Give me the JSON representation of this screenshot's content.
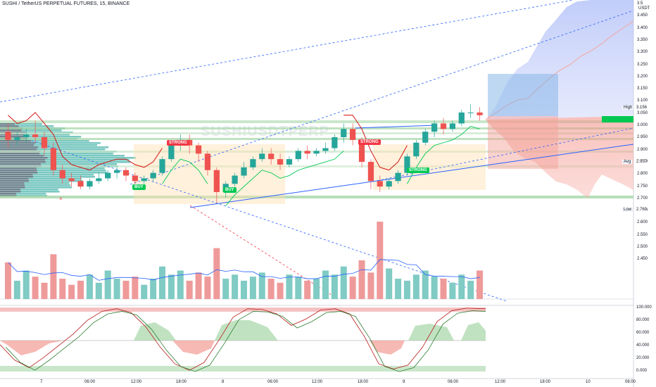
{
  "header": {
    "title": "SUSHI / TetherUS PERPETUAL FUTURES, 15, BINANCE"
  },
  "watermark": "SUSHIUSDTPERP",
  "price_axis": {
    "currency": "USDT",
    "ticks": [
      "3.5",
      "3.450",
      "3.400",
      "3.350",
      "3.300",
      "3.250",
      "3.200",
      "3.150",
      "3.100",
      "3.050",
      "3.000",
      "2.950",
      "2.900",
      "2.850",
      "2.800",
      "2.750",
      "2.700",
      "2.650",
      "2.600",
      "2.550",
      "2.500",
      "2.450"
    ],
    "badges": [
      {
        "label": "High",
        "value": "3.156"
      },
      {
        "label": "Avg",
        "value": "2.950"
      },
      {
        "label": "Low",
        "value": "2.769"
      }
    ]
  },
  "osc_axis": {
    "ticks": [
      "100.000",
      "80.000",
      "60.000",
      "40.000",
      "20.000",
      "0.000"
    ]
  },
  "time_axis": {
    "ticks": [
      "7",
      "06:00",
      "12:00",
      "18:00",
      "8",
      "06:00",
      "12:00",
      "18:00",
      "9",
      "06:00",
      "12:00",
      "18:00",
      "10",
      "06:00"
    ]
  },
  "signals": [
    {
      "text": "STRONG",
      "kind": "sell"
    },
    {
      "text": "BUY",
      "kind": "buy"
    },
    {
      "text": "BUY",
      "kind": "buy"
    },
    {
      "text": "STRONG",
      "kind": "sell"
    },
    {
      "text": "STRONG",
      "kind": "buy"
    }
  ],
  "colors": {
    "up": "#26a69a",
    "down": "#ef5350",
    "buy": "#00c853",
    "sell": "#f23645",
    "trend": "#2962ff",
    "green_line": "#00c853",
    "red_line": "#d50000"
  },
  "chart_data": {
    "type": "candlestick",
    "title": "SUSHI / TetherUS PERPETUAL FUTURES, 15, BINANCE",
    "price_range": [
      2.43,
      3.52
    ],
    "candles": [
      {
        "o": 3.04,
        "h": 3.07,
        "c": 3.01,
        "l": 2.98
      },
      {
        "o": 3.01,
        "h": 3.04,
        "c": 3.02,
        "l": 2.99
      },
      {
        "o": 3.02,
        "h": 3.05,
        "c": 3.03,
        "l": 3.0
      },
      {
        "o": 3.03,
        "h": 3.08,
        "c": 3.02,
        "l": 3.0
      },
      {
        "o": 3.02,
        "h": 3.04,
        "c": 2.98,
        "l": 2.95
      },
      {
        "o": 2.98,
        "h": 3.0,
        "c": 2.9,
        "l": 2.88
      },
      {
        "o": 2.9,
        "h": 2.92,
        "c": 2.87,
        "l": 2.85
      },
      {
        "o": 2.87,
        "h": 2.89,
        "c": 2.86,
        "l": 2.84
      },
      {
        "o": 2.86,
        "h": 2.88,
        "c": 2.84,
        "l": 2.83
      },
      {
        "o": 2.84,
        "h": 2.87,
        "c": 2.86,
        "l": 2.83
      },
      {
        "o": 2.86,
        "h": 2.89,
        "c": 2.87,
        "l": 2.85
      },
      {
        "o": 2.87,
        "h": 2.9,
        "c": 2.89,
        "l": 2.86
      },
      {
        "o": 2.89,
        "h": 2.91,
        "c": 2.9,
        "l": 2.87
      },
      {
        "o": 2.9,
        "h": 2.91,
        "c": 2.88,
        "l": 2.86
      },
      {
        "o": 2.88,
        "h": 2.89,
        "c": 2.86,
        "l": 2.84
      },
      {
        "o": 2.86,
        "h": 2.88,
        "c": 2.87,
        "l": 2.85
      },
      {
        "o": 2.87,
        "h": 2.9,
        "c": 2.89,
        "l": 2.86
      },
      {
        "o": 2.89,
        "h": 2.95,
        "c": 2.94,
        "l": 2.88
      },
      {
        "o": 2.94,
        "h": 3.0,
        "c": 2.99,
        "l": 2.93
      },
      {
        "o": 2.99,
        "h": 3.03,
        "c": 3.01,
        "l": 2.97
      },
      {
        "o": 3.01,
        "h": 3.03,
        "c": 2.99,
        "l": 2.96
      },
      {
        "o": 2.99,
        "h": 3.0,
        "c": 2.96,
        "l": 2.93
      },
      {
        "o": 2.96,
        "h": 2.97,
        "c": 2.9,
        "l": 2.88
      },
      {
        "o": 2.9,
        "h": 2.91,
        "c": 2.82,
        "l": 2.78
      },
      {
        "o": 2.82,
        "h": 2.86,
        "c": 2.85,
        "l": 2.8
      },
      {
        "o": 2.85,
        "h": 2.89,
        "c": 2.88,
        "l": 2.84
      },
      {
        "o": 2.88,
        "h": 2.93,
        "c": 2.91,
        "l": 2.87
      },
      {
        "o": 2.91,
        "h": 2.95,
        "c": 2.94,
        "l": 2.9
      },
      {
        "o": 2.94,
        "h": 2.98,
        "c": 2.96,
        "l": 2.93
      },
      {
        "o": 2.96,
        "h": 2.98,
        "c": 2.94,
        "l": 2.92
      },
      {
        "o": 2.94,
        "h": 2.96,
        "c": 2.92,
        "l": 2.9
      },
      {
        "o": 2.92,
        "h": 2.95,
        "c": 2.94,
        "l": 2.91
      },
      {
        "o": 2.94,
        "h": 2.98,
        "c": 2.97,
        "l": 2.93
      },
      {
        "o": 2.97,
        "h": 2.99,
        "c": 2.96,
        "l": 2.94
      },
      {
        "o": 2.96,
        "h": 2.98,
        "c": 2.97,
        "l": 2.95
      },
      {
        "o": 2.97,
        "h": 3.0,
        "c": 2.98,
        "l": 2.96
      },
      {
        "o": 2.98,
        "h": 3.03,
        "c": 3.02,
        "l": 2.97
      },
      {
        "o": 3.02,
        "h": 3.07,
        "c": 3.05,
        "l": 3.0
      },
      {
        "o": 3.05,
        "h": 3.07,
        "c": 3.01,
        "l": 2.99
      },
      {
        "o": 3.01,
        "h": 3.02,
        "c": 2.93,
        "l": 2.91
      },
      {
        "o": 2.93,
        "h": 2.94,
        "c": 2.86,
        "l": 2.83
      },
      {
        "o": 2.86,
        "h": 2.88,
        "c": 2.84,
        "l": 2.82
      },
      {
        "o": 2.84,
        "h": 2.87,
        "c": 2.86,
        "l": 2.83
      },
      {
        "o": 2.86,
        "h": 2.9,
        "c": 2.89,
        "l": 2.85
      },
      {
        "o": 2.89,
        "h": 2.96,
        "c": 2.95,
        "l": 2.88
      },
      {
        "o": 2.95,
        "h": 3.01,
        "c": 3.0,
        "l": 2.94
      },
      {
        "o": 3.0,
        "h": 3.05,
        "c": 3.04,
        "l": 2.99
      },
      {
        "o": 3.04,
        "h": 3.08,
        "c": 3.07,
        "l": 3.02
      },
      {
        "o": 3.07,
        "h": 3.09,
        "c": 3.05,
        "l": 3.03
      },
      {
        "o": 3.05,
        "h": 3.08,
        "c": 3.07,
        "l": 3.04
      },
      {
        "o": 3.07,
        "h": 3.12,
        "c": 3.11,
        "l": 3.06
      },
      {
        "o": 3.11,
        "h": 3.14,
        "c": 3.11,
        "l": 3.09
      },
      {
        "o": 3.11,
        "h": 3.13,
        "c": 3.1,
        "l": 3.08
      }
    ],
    "volume": [
      18,
      9,
      14,
      11,
      8,
      22,
      10,
      7,
      9,
      12,
      8,
      14,
      10,
      9,
      11,
      7,
      10,
      16,
      12,
      14,
      9,
      13,
      11,
      25,
      10,
      12,
      9,
      11,
      13,
      10,
      8,
      12,
      11,
      9,
      10,
      14,
      12,
      16,
      11,
      19,
      13,
      38,
      15,
      10,
      9,
      12,
      14,
      11,
      10,
      8,
      12,
      9,
      14
    ],
    "oscillator": [
      {
        "x": 0,
        "y": 42
      },
      {
        "x": 0.03,
        "y": 18
      },
      {
        "x": 0.06,
        "y": 6
      },
      {
        "x": 0.09,
        "y": 22
      },
      {
        "x": 0.12,
        "y": 40
      },
      {
        "x": 0.15,
        "y": 58
      },
      {
        "x": 0.18,
        "y": 80
      },
      {
        "x": 0.21,
        "y": 94
      },
      {
        "x": 0.24,
        "y": 98
      },
      {
        "x": 0.27,
        "y": 92
      },
      {
        "x": 0.3,
        "y": 70
      },
      {
        "x": 0.33,
        "y": 38
      },
      {
        "x": 0.36,
        "y": 12
      },
      {
        "x": 0.39,
        "y": 2
      },
      {
        "x": 0.42,
        "y": 14
      },
      {
        "x": 0.45,
        "y": 48
      },
      {
        "x": 0.48,
        "y": 85
      },
      {
        "x": 0.51,
        "y": 98
      },
      {
        "x": 0.54,
        "y": 97
      },
      {
        "x": 0.57,
        "y": 90
      },
      {
        "x": 0.6,
        "y": 72
      },
      {
        "x": 0.63,
        "y": 82
      },
      {
        "x": 0.66,
        "y": 96
      },
      {
        "x": 0.69,
        "y": 98
      },
      {
        "x": 0.72,
        "y": 90
      },
      {
        "x": 0.75,
        "y": 55
      },
      {
        "x": 0.78,
        "y": 12
      },
      {
        "x": 0.81,
        "y": 4
      },
      {
        "x": 0.84,
        "y": 10
      },
      {
        "x": 0.87,
        "y": 38
      },
      {
        "x": 0.9,
        "y": 78
      },
      {
        "x": 0.93,
        "y": 95
      },
      {
        "x": 0.96,
        "y": 99
      },
      {
        "x": 1.0,
        "y": 98
      }
    ]
  }
}
